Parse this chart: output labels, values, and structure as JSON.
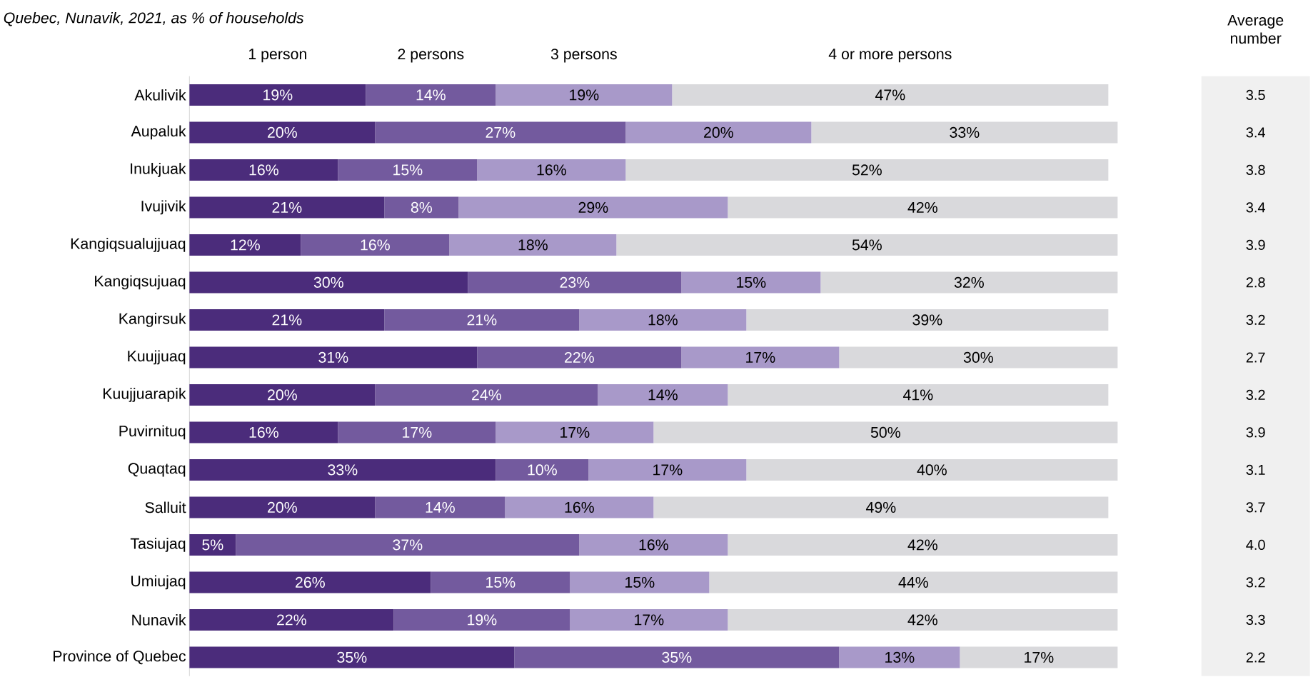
{
  "chart_data": [
    {
      "type": "bar",
      "orientation": "horizontal",
      "stacked": true,
      "subtitle": "Quebec, Nunavik, 2021, as % of households",
      "legend": "top",
      "categories": [
        "Akulivik",
        "Aupaluk",
        "Inukjuak",
        "Ivujivik",
        "Kangiqsualujjuaq",
        "Kangiqsujuaq",
        "Kangirsuk",
        "Kuujjuaq",
        "Kuujjuarapik",
        "Puvirnituq",
        "Quaqtaq",
        "Salluit",
        "Tasiujaq",
        "Umiujaq",
        "Nunavik",
        "Province of Quebec"
      ],
      "series": [
        {
          "name": "1 person",
          "color": "#4b2c7b",
          "values": [
            19,
            20,
            16,
            21,
            12,
            30,
            21,
            31,
            20,
            16,
            33,
            20,
            5,
            26,
            22,
            35
          ],
          "value_labels": [
            "19%",
            "20%",
            "16%",
            "21%",
            "12%",
            "30%",
            "21%",
            "31%",
            "20%",
            "16%",
            "33%",
            "20%",
            "5%",
            "26%",
            "22%",
            "35%"
          ]
        },
        {
          "name": "2 persons",
          "color": "#735a9e",
          "values": [
            14,
            27,
            15,
            8,
            16,
            23,
            21,
            22,
            24,
            17,
            10,
            14,
            37,
            15,
            19,
            35
          ],
          "value_labels": [
            "14%",
            "27%",
            "15%",
            "8%",
            "16%",
            "23%",
            "21%",
            "22%",
            "24%",
            "17%",
            "10%",
            "14%",
            "37%",
            "15%",
            "19%",
            "35%"
          ]
        },
        {
          "name": "3 persons",
          "color": "#a899c9",
          "values": [
            19,
            20,
            16,
            29,
            18,
            15,
            18,
            17,
            14,
            17,
            17,
            16,
            16,
            15,
            17,
            13
          ],
          "value_labels": [
            "19%",
            "20%",
            "16%",
            "29%",
            "18%",
            "15%",
            "18%",
            "17%",
            "14%",
            "17%",
            "17%",
            "16%",
            "16%",
            "15%",
            "17%",
            "13%"
          ]
        },
        {
          "name": "4 or more persons",
          "color": "#d9d9dc",
          "values": [
            47,
            33,
            52,
            42,
            54,
            32,
            39,
            30,
            41,
            50,
            40,
            49,
            42,
            44,
            42,
            17
          ],
          "value_labels": [
            "47%",
            "33%",
            "52%",
            "42%",
            "54%",
            "32%",
            "39%",
            "30%",
            "41%",
            "50%",
            "40%",
            "49%",
            "42%",
            "44%",
            "42%",
            "17%"
          ]
        }
      ]
    },
    {
      "type": "other",
      "title": "Average number",
      "annotations": [
        "3.5",
        "3.4",
        "3.8",
        "3.4",
        "3.9",
        "2.8",
        "3.2",
        "2.7",
        "3.2",
        "3.9",
        "3.1",
        "3.7",
        "4.0",
        "3.2",
        "3.3",
        "2.2"
      ]
    }
  ]
}
